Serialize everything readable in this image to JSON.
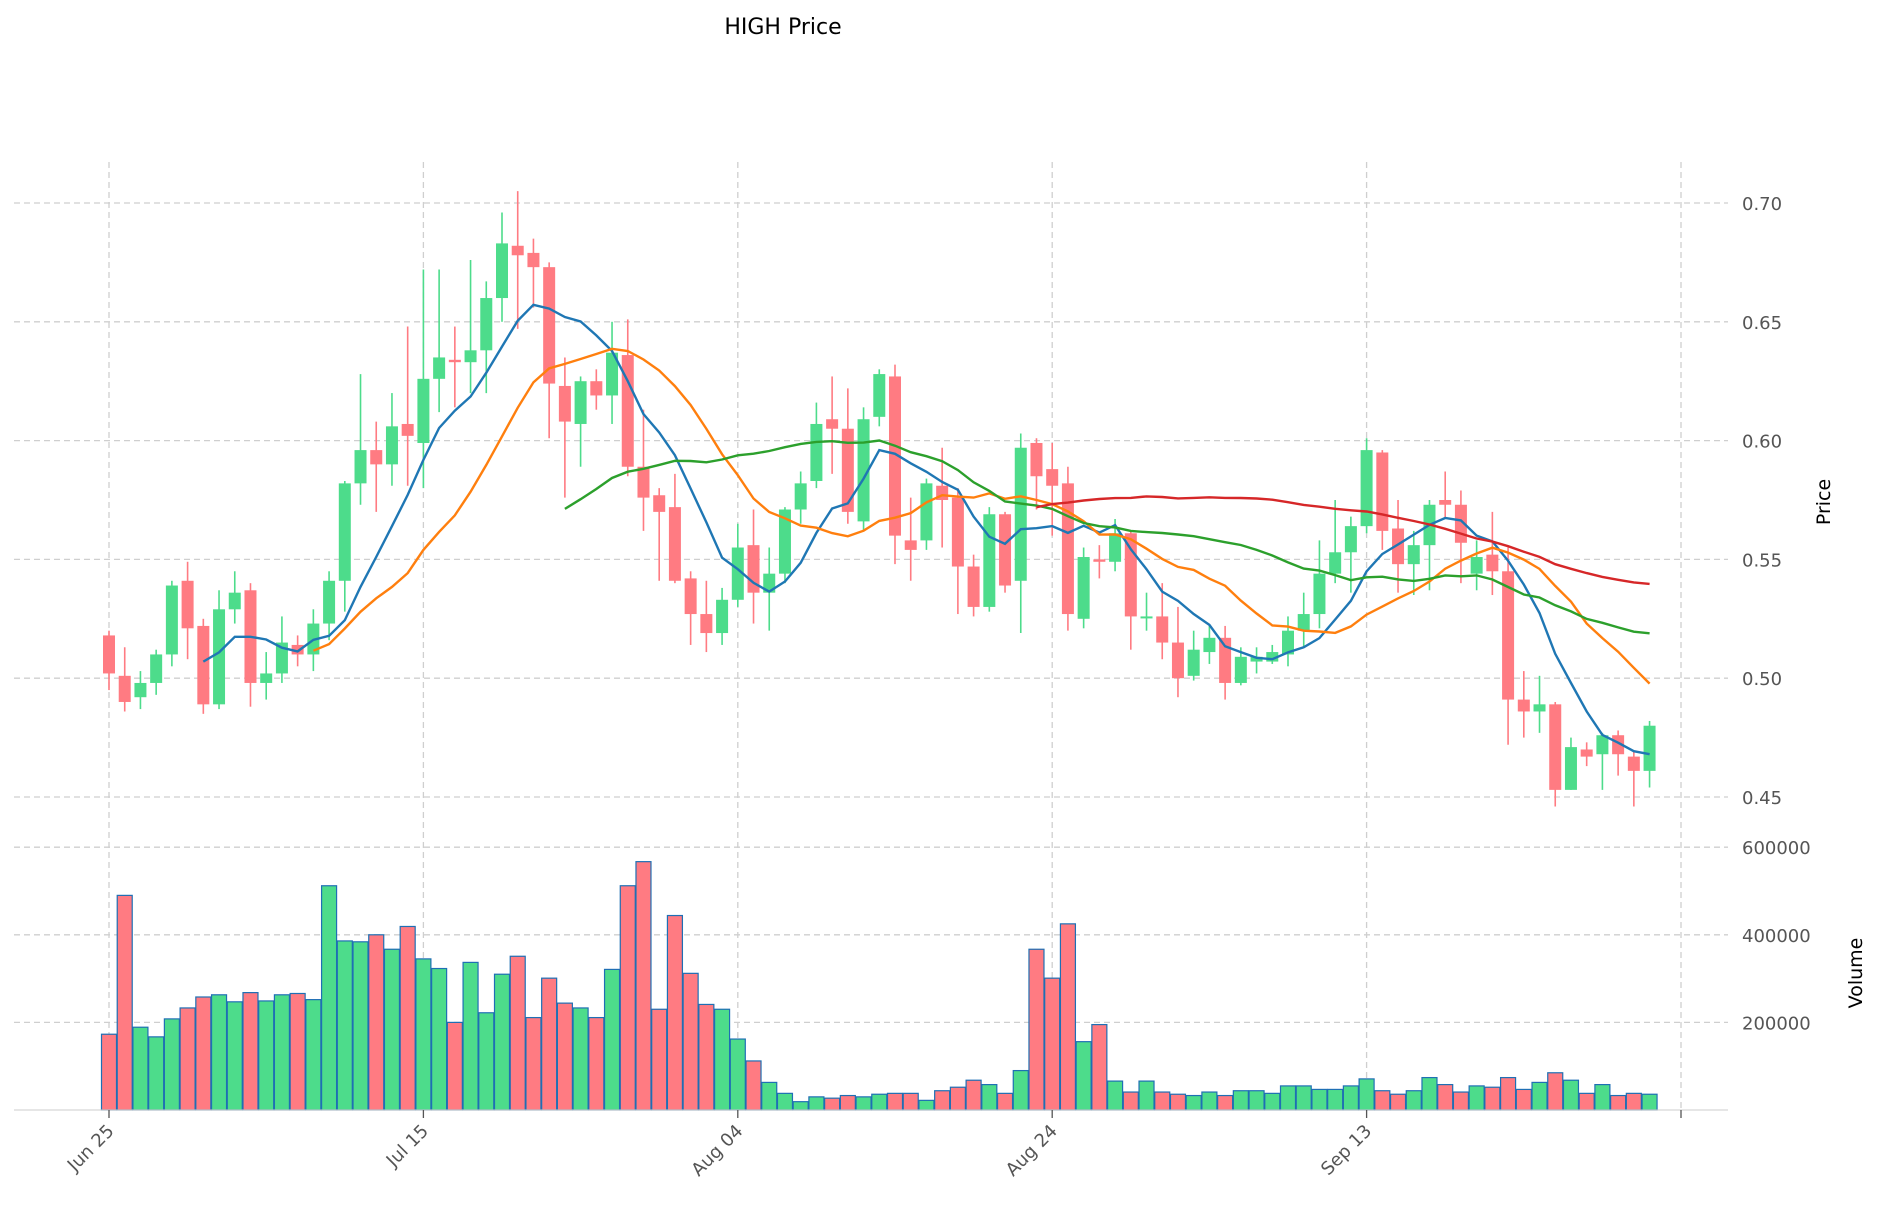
{
  "chart_data": {
    "type": "candlestick",
    "title": "HIGH Price",
    "ylabel": "Price",
    "ylabel_volume": "Volume",
    "ylim": [
      0.435,
      0.718
    ],
    "volume_ylim": [
      0,
      620000
    ],
    "y_ticks": [
      "0.45",
      "0.50",
      "0.55",
      "0.60",
      "0.65",
      "0.70"
    ],
    "y_tick_values": [
      0.45,
      0.5,
      0.55,
      0.6,
      0.65,
      0.7
    ],
    "volume_ticks": [
      "200000",
      "400000",
      "600000"
    ],
    "volume_tick_values": [
      200000,
      400000,
      600000
    ],
    "x_ticks": [
      "Jun 25",
      "Jul 15",
      "Aug 04",
      "Aug 24",
      "Sep 13"
    ],
    "x_tick_index": [
      0,
      20,
      40,
      60,
      80
    ],
    "moving_averages": [
      {
        "window": 7,
        "color": "#1f77b4"
      },
      {
        "window": 14,
        "color": "#ff7f0e"
      },
      {
        "window": 30,
        "color": "#2ca02c"
      },
      {
        "window": 60,
        "color": "#d62728"
      }
    ],
    "colors": {
      "up": "#4ddc8b",
      "down": "#ff7b82",
      "volume_edge": "#1f6fb4"
    },
    "open": [
      0.518,
      0.501,
      0.492,
      0.498,
      0.51,
      0.541,
      0.522,
      0.489,
      0.529,
      0.537,
      0.498,
      0.502,
      0.514,
      0.51,
      0.523,
      0.541,
      0.582,
      0.596,
      0.59,
      0.607,
      0.599,
      0.626,
      0.634,
      0.633,
      0.638,
      0.66,
      0.682,
      0.679,
      0.673,
      0.623,
      0.607,
      0.625,
      0.619,
      0.636,
      0.589,
      0.577,
      0.572,
      0.542,
      0.527,
      0.519,
      0.533,
      0.556,
      0.536,
      0.544,
      0.571,
      0.583,
      0.609,
      0.605,
      0.566,
      0.61,
      0.627,
      0.558,
      0.558,
      0.581,
      0.576,
      0.547,
      0.53,
      0.569,
      0.541,
      0.599,
      0.588,
      0.582,
      0.525,
      0.55,
      0.549,
      0.561,
      0.526,
      0.526,
      0.515,
      0.501,
      0.511,
      0.517,
      0.498,
      0.507,
      0.507,
      0.51,
      0.52,
      0.527,
      0.544,
      0.553,
      0.564,
      0.595,
      0.563,
      0.548,
      0.556,
      0.575,
      0.573,
      0.544,
      0.552,
      0.545,
      0.491,
      0.486,
      0.489,
      0.453,
      0.47,
      0.468,
      0.476,
      0.467,
      0.461
    ],
    "high": [
      0.52,
      0.513,
      0.503,
      0.512,
      0.541,
      0.549,
      0.525,
      0.537,
      0.545,
      0.54,
      0.511,
      0.526,
      0.518,
      0.529,
      0.545,
      0.583,
      0.628,
      0.608,
      0.62,
      0.648,
      0.672,
      0.672,
      0.648,
      0.676,
      0.667,
      0.696,
      0.705,
      0.685,
      0.675,
      0.635,
      0.627,
      0.63,
      0.65,
      0.651,
      0.613,
      0.58,
      0.586,
      0.545,
      0.541,
      0.538,
      0.565,
      0.571,
      0.555,
      0.572,
      0.587,
      0.616,
      0.627,
      0.622,
      0.614,
      0.63,
      0.632,
      0.576,
      0.584,
      0.597,
      0.58,
      0.552,
      0.572,
      0.57,
      0.603,
      0.601,
      0.599,
      0.589,
      0.555,
      0.556,
      0.567,
      0.562,
      0.536,
      0.54,
      0.53,
      0.52,
      0.522,
      0.522,
      0.513,
      0.513,
      0.514,
      0.526,
      0.536,
      0.558,
      0.575,
      0.568,
      0.601,
      0.596,
      0.575,
      0.562,
      0.575,
      0.587,
      0.579,
      0.558,
      0.57,
      0.555,
      0.503,
      0.501,
      0.49,
      0.475,
      0.473,
      0.477,
      0.478,
      0.469,
      0.482
    ],
    "low": [
      0.495,
      0.486,
      0.487,
      0.493,
      0.505,
      0.508,
      0.485,
      0.487,
      0.523,
      0.488,
      0.491,
      0.498,
      0.505,
      0.503,
      0.516,
      0.528,
      0.573,
      0.57,
      0.581,
      0.581,
      0.58,
      0.612,
      0.614,
      0.62,
      0.62,
      0.65,
      0.647,
      0.656,
      0.601,
      0.576,
      0.589,
      0.613,
      0.607,
      0.585,
      0.562,
      0.541,
      0.54,
      0.514,
      0.511,
      0.514,
      0.53,
      0.523,
      0.52,
      0.54,
      0.565,
      0.58,
      0.586,
      0.565,
      0.562,
      0.606,
      0.548,
      0.541,
      0.554,
      0.555,
      0.527,
      0.526,
      0.528,
      0.536,
      0.519,
      0.571,
      0.56,
      0.52,
      0.521,
      0.542,
      0.545,
      0.512,
      0.52,
      0.508,
      0.492,
      0.499,
      0.506,
      0.491,
      0.497,
      0.502,
      0.506,
      0.505,
      0.513,
      0.521,
      0.54,
      0.536,
      0.561,
      0.554,
      0.536,
      0.535,
      0.537,
      0.567,
      0.54,
      0.537,
      0.535,
      0.472,
      0.475,
      0.477,
      0.446,
      0.453,
      0.463,
      0.453,
      0.459,
      0.446,
      0.454
    ],
    "close": [
      0.502,
      0.49,
      0.498,
      0.51,
      0.539,
      0.521,
      0.489,
      0.529,
      0.536,
      0.498,
      0.502,
      0.515,
      0.51,
      0.523,
      0.541,
      0.582,
      0.596,
      0.59,
      0.606,
      0.602,
      0.626,
      0.635,
      0.633,
      0.638,
      0.66,
      0.683,
      0.678,
      0.673,
      0.624,
      0.608,
      0.625,
      0.619,
      0.637,
      0.589,
      0.576,
      0.57,
      0.541,
      0.527,
      0.519,
      0.533,
      0.555,
      0.536,
      0.544,
      0.571,
      0.582,
      0.607,
      0.605,
      0.57,
      0.609,
      0.628,
      0.56,
      0.554,
      0.582,
      0.575,
      0.547,
      0.53,
      0.569,
      0.539,
      0.597,
      0.585,
      0.581,
      0.527,
      0.551,
      0.549,
      0.561,
      0.526,
      0.526,
      0.515,
      0.5,
      0.512,
      0.517,
      0.498,
      0.509,
      0.509,
      0.511,
      0.52,
      0.527,
      0.544,
      0.553,
      0.564,
      0.596,
      0.562,
      0.548,
      0.556,
      0.573,
      0.573,
      0.557,
      0.551,
      0.545,
      0.491,
      0.486,
      0.489,
      0.453,
      0.471,
      0.467,
      0.476,
      0.468,
      0.461,
      0.48
    ],
    "volume": [
      173000,
      490000,
      189000,
      167000,
      208000,
      233000,
      258000,
      263000,
      247000,
      268000,
      249000,
      263000,
      266000,
      252000,
      512000,
      386000,
      384000,
      400000,
      367000,
      419000,
      345000,
      323000,
      200000,
      337000,
      222000,
      310000,
      351000,
      211000,
      301000,
      244000,
      233000,
      211000,
      321000,
      512000,
      567000,
      230000,
      444000,
      312000,
      241000,
      230000,
      162000,
      112000,
      63000,
      38000,
      19000,
      30000,
      27000,
      33000,
      30000,
      36000,
      38000,
      38000,
      22000,
      44000,
      52000,
      68000,
      58000,
      38000,
      90000,
      367000,
      301000,
      425000,
      156000,
      195000,
      66000,
      41000,
      66000,
      41000,
      36000,
      33000,
      41000,
      33000,
      44000,
      44000,
      38000,
      55000,
      55000,
      47000,
      47000,
      55000,
      71000,
      44000,
      36000,
      44000,
      74000,
      58000,
      41000,
      55000,
      52000,
      74000,
      47000,
      63000,
      85000,
      68000,
      38000,
      58000,
      33000,
      38000,
      36000
    ]
  }
}
